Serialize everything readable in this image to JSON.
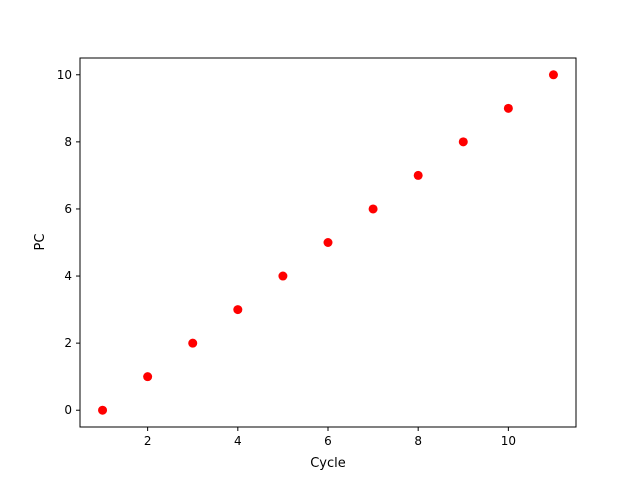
{
  "chart_data": {
    "type": "scatter",
    "title": "",
    "xlabel": "Cycle",
    "ylabel": "PC",
    "xlim": [
      0.5,
      11.5
    ],
    "ylim": [
      -0.5,
      10.5
    ],
    "xticks": [
      2,
      4,
      6,
      8,
      10
    ],
    "yticks": [
      0,
      2,
      4,
      6,
      8,
      10
    ],
    "grid": false,
    "legend": "none",
    "marker_color": "#ff0000",
    "series": [
      {
        "x": [
          1,
          2,
          3,
          4,
          5,
          6,
          7,
          8,
          9,
          10,
          11
        ],
        "y": [
          0,
          1,
          2,
          3,
          4,
          5,
          6,
          7,
          8,
          9,
          10
        ]
      }
    ]
  }
}
